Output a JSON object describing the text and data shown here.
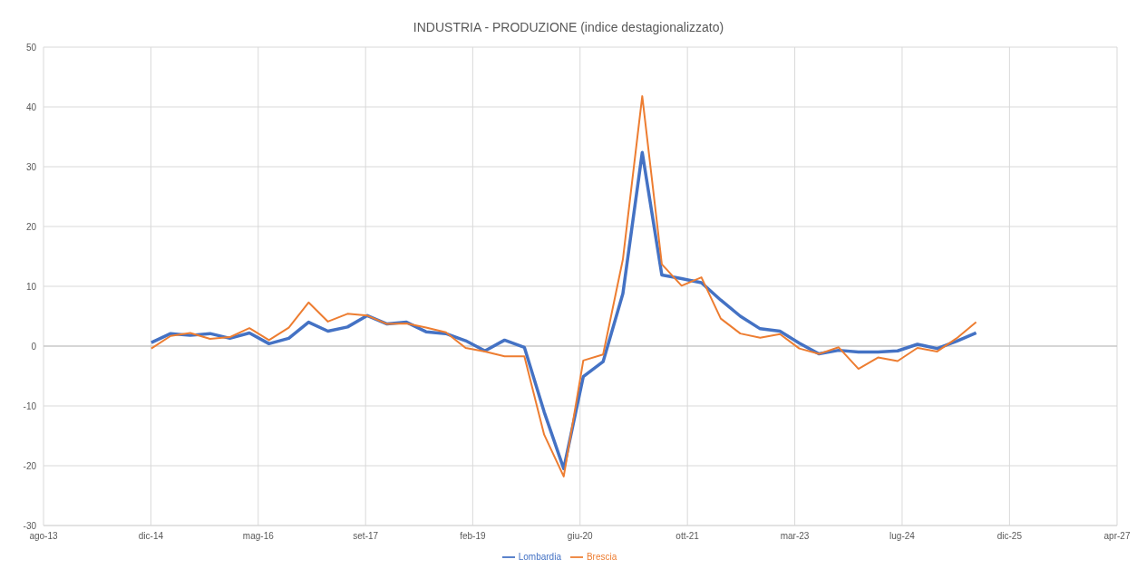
{
  "chart_data": {
    "type": "line",
    "title": "INDUSTRIA - PRODUZIONE (indice destagionalizzato)",
    "x": [
      "2015-01",
      "2015-04",
      "2015-07",
      "2015-10",
      "2016-01",
      "2016-04",
      "2016-07",
      "2016-10",
      "2017-01",
      "2017-04",
      "2017-07",
      "2017-10",
      "2018-01",
      "2018-04",
      "2018-07",
      "2018-10",
      "2019-01",
      "2019-04",
      "2019-07",
      "2019-10",
      "2020-01",
      "2020-04",
      "2020-07",
      "2020-10",
      "2021-01",
      "2021-04",
      "2021-07",
      "2021-10",
      "2022-01",
      "2022-04",
      "2022-07",
      "2022-10",
      "2023-01",
      "2023-04",
      "2023-07",
      "2023-10",
      "2024-01",
      "2024-04",
      "2024-07",
      "2024-10",
      "2025-01",
      "2025-04",
      "2025-07"
    ],
    "series": [
      {
        "name": "Lombardia",
        "color": "#4472c4",
        "values": [
          0.6,
          2.1,
          1.8,
          2.1,
          1.3,
          2.2,
          0.4,
          1.3,
          4.0,
          2.5,
          3.2,
          5.1,
          3.7,
          4.0,
          2.4,
          2.1,
          0.9,
          -0.8,
          1.0,
          -0.2,
          -11.0,
          -20.5,
          -5.1,
          -2.6,
          8.8,
          32.4,
          11.9,
          11.3,
          10.6,
          7.7,
          5.0,
          2.9,
          2.5,
          0.5,
          -1.3,
          -0.7,
          -1.0,
          -1.0,
          -0.8,
          0.3,
          -0.4,
          0.8,
          2.2
        ]
      },
      {
        "name": "Brescia",
        "color": "#ed7d31",
        "values": [
          -0.4,
          1.7,
          2.2,
          1.2,
          1.5,
          3.0,
          1.0,
          3.1,
          7.3,
          4.1,
          5.4,
          5.1,
          3.7,
          3.8,
          3.1,
          2.3,
          -0.3,
          -0.9,
          -1.7,
          -1.7,
          -14.8,
          -21.8,
          -2.4,
          -1.4,
          14.5,
          41.8,
          13.7,
          10.1,
          11.5,
          4.6,
          2.1,
          1.4,
          2.0,
          -0.4,
          -1.3,
          -0.2,
          -3.8,
          -1.9,
          -2.5,
          -0.3,
          -0.9,
          1.3,
          4.0
        ]
      }
    ],
    "xlim": [
      "2013-08-18",
      "2027-04-17"
    ],
    "xticks": [
      {
        "value": "2013-08-18",
        "label": "ago-13"
      },
      {
        "value": "2014-12-30",
        "label": "dic-14"
      },
      {
        "value": "2016-05-12",
        "label": "mag-16"
      },
      {
        "value": "2017-09-23",
        "label": "set-17"
      },
      {
        "value": "2019-02-03",
        "label": "feb-19"
      },
      {
        "value": "2020-06-16",
        "label": "giu-20"
      },
      {
        "value": "2021-10-28",
        "label": "ott-21"
      },
      {
        "value": "2023-03-11",
        "label": "mar-23"
      },
      {
        "value": "2024-07-22",
        "label": "lug-24"
      },
      {
        "value": "2025-12-03",
        "label": "dic-25"
      },
      {
        "value": "2027-04-17",
        "label": "apr-27"
      }
    ],
    "ylim": [
      -30,
      50
    ],
    "yticks": [
      -30,
      -20,
      -10,
      0,
      10,
      20,
      30,
      40,
      50
    ],
    "grid": true,
    "legend": "bottom",
    "marker": "none",
    "line_style": "solid"
  }
}
